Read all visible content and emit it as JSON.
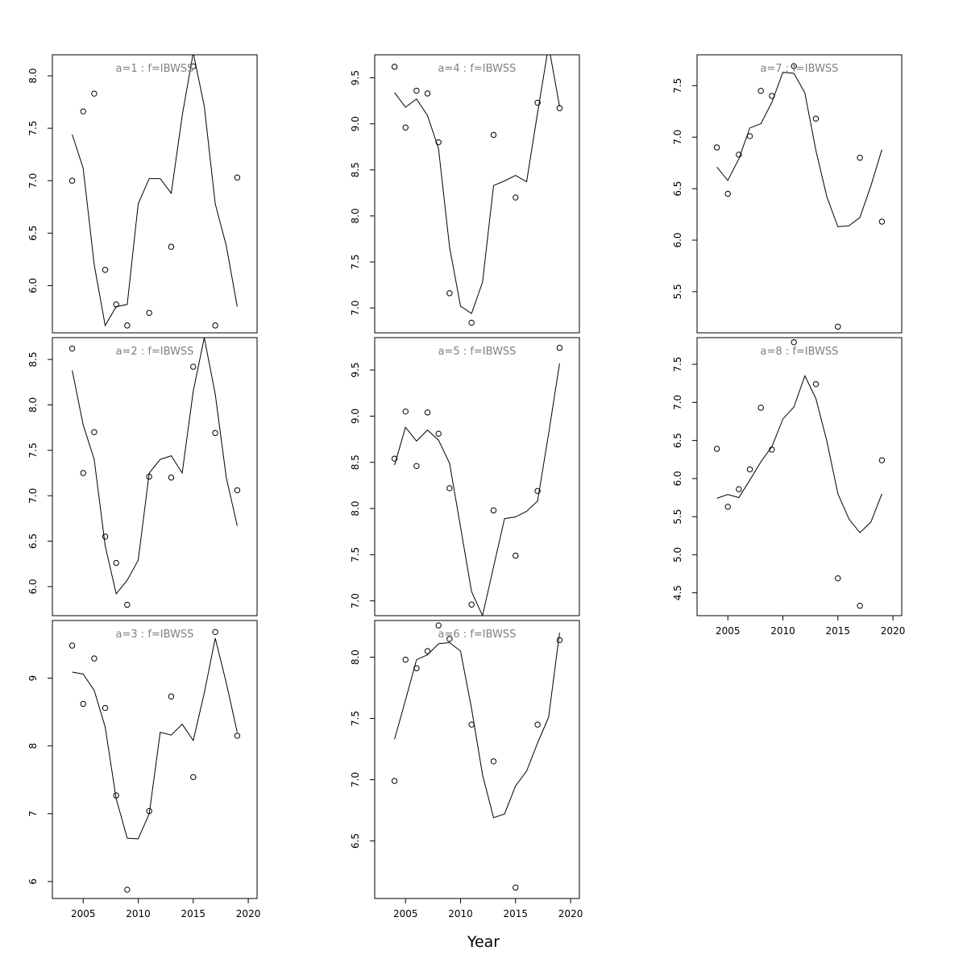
{
  "figure": {
    "xlabel": "Year",
    "xticks": [
      2005,
      2010,
      2015,
      2020
    ]
  },
  "chart_data": [
    {
      "type": "scatter",
      "title": "a=1  :  f=IBWSS",
      "panel_row": 1,
      "panel_col": 1,
      "xlim": [
        2002.2,
        2020.8
      ],
      "ylim": [
        5.55,
        8.2
      ],
      "yticks": [
        "6.0",
        "6.5",
        "7.0",
        "7.5",
        "8.0"
      ],
      "x_axis_labeled": false,
      "observed": {
        "x": [
          2004,
          2005,
          2006,
          2007,
          2008,
          2009,
          2011,
          2013,
          2015,
          2017,
          2019
        ],
        "y": [
          7.0,
          7.66,
          7.83,
          6.15,
          5.82,
          5.62,
          5.74,
          6.37,
          8.09,
          5.62,
          7.03
        ]
      },
      "fitted": {
        "x": [
          2004,
          2005,
          2006,
          2007,
          2008,
          2009,
          2010,
          2011,
          2012,
          2013,
          2014,
          2015,
          2016,
          2017,
          2018,
          2019
        ],
        "y": [
          7.44,
          7.12,
          6.2,
          5.62,
          5.8,
          5.82,
          6.78,
          7.02,
          7.02,
          6.88,
          7.62,
          8.22,
          7.71,
          6.78,
          6.38,
          5.8
        ]
      }
    },
    {
      "type": "scatter",
      "title": "a=2  :  f=IBWSS",
      "panel_row": 2,
      "panel_col": 1,
      "xlim": [
        2002.2,
        2020.8
      ],
      "ylim": [
        5.68,
        8.74
      ],
      "yticks": [
        "6.0",
        "6.5",
        "7.0",
        "7.5",
        "8.0",
        "8.5"
      ],
      "x_axis_labeled": false,
      "observed": {
        "x": [
          2004,
          2005,
          2006,
          2007,
          2008,
          2009,
          2011,
          2013,
          2015,
          2017,
          2019
        ],
        "y": [
          8.62,
          7.25,
          7.7,
          6.55,
          6.26,
          5.8,
          7.21,
          7.2,
          8.42,
          7.69,
          7.06
        ]
      },
      "fitted": {
        "x": [
          2004,
          2005,
          2006,
          2007,
          2008,
          2009,
          2010,
          2011,
          2012,
          2013,
          2014,
          2015,
          2016,
          2017,
          2018,
          2019
        ],
        "y": [
          8.38,
          7.78,
          7.4,
          6.45,
          5.92,
          6.07,
          6.29,
          7.25,
          7.4,
          7.44,
          7.25,
          8.15,
          8.74,
          8.12,
          7.2,
          6.67
        ]
      }
    },
    {
      "type": "scatter",
      "title": "a=3  :  f=IBWSS",
      "panel_row": 3,
      "panel_col": 1,
      "xlim": [
        2002.2,
        2020.8
      ],
      "ylim": [
        5.75,
        9.85
      ],
      "yticks": [
        "6",
        "7",
        "8",
        "9"
      ],
      "x_axis_labeled": true,
      "observed": {
        "x": [
          2004,
          2005,
          2006,
          2007,
          2008,
          2009,
          2011,
          2013,
          2015,
          2017,
          2019
        ],
        "y": [
          9.48,
          8.62,
          9.29,
          8.56,
          7.27,
          5.88,
          7.04,
          8.73,
          7.54,
          9.68,
          8.15
        ]
      },
      "fitted": {
        "x": [
          2004,
          2005,
          2006,
          2007,
          2008,
          2009,
          2010,
          2011,
          2012,
          2013,
          2014,
          2015,
          2016,
          2017,
          2018,
          2019
        ],
        "y": [
          9.09,
          9.06,
          8.82,
          8.28,
          7.22,
          6.64,
          6.63,
          7.0,
          8.2,
          8.16,
          8.32,
          8.08,
          8.78,
          9.59,
          8.93,
          8.2
        ]
      }
    },
    {
      "type": "scatter",
      "title": "a=4  :  f=IBWSS",
      "panel_row": 1,
      "panel_col": 2,
      "xlim": [
        2002.2,
        2020.8
      ],
      "ylim": [
        6.73,
        9.75
      ],
      "yticks": [
        "7.0",
        "7.5",
        "8.0",
        "8.5",
        "9.0",
        "9.5"
      ],
      "x_axis_labeled": false,
      "observed": {
        "x": [
          2004,
          2005,
          2006,
          2007,
          2008,
          2009,
          2011,
          2013,
          2015,
          2017,
          2019
        ],
        "y": [
          9.62,
          8.96,
          9.36,
          9.33,
          8.8,
          7.16,
          6.84,
          8.88,
          8.2,
          9.23,
          9.17
        ]
      },
      "fitted": {
        "x": [
          2004,
          2005,
          2006,
          2007,
          2008,
          2009,
          2010,
          2011,
          2012,
          2013,
          2014,
          2015,
          2016,
          2017,
          2018,
          2019
        ],
        "y": [
          9.34,
          9.18,
          9.27,
          9.09,
          8.73,
          7.66,
          7.02,
          6.94,
          7.28,
          8.33,
          8.38,
          8.44,
          8.37,
          9.12,
          9.85,
          9.19
        ]
      }
    },
    {
      "type": "scatter",
      "title": "a=5  :  f=IBWSS",
      "panel_row": 2,
      "panel_col": 2,
      "xlim": [
        2002.2,
        2020.8
      ],
      "ylim": [
        6.84,
        9.85
      ],
      "yticks": [
        "7.0",
        "7.5",
        "8.0",
        "8.5",
        "9.0",
        "9.5"
      ],
      "x_axis_labeled": false,
      "observed": {
        "x": [
          2004,
          2005,
          2006,
          2007,
          2008,
          2009,
          2011,
          2013,
          2015,
          2017,
          2019
        ],
        "y": [
          8.54,
          9.05,
          8.46,
          9.04,
          8.81,
          8.22,
          6.96,
          7.98,
          7.49,
          8.19,
          9.74
        ]
      },
      "fitted": {
        "x": [
          2004,
          2005,
          2006,
          2007,
          2008,
          2009,
          2010,
          2011,
          2012,
          2013,
          2014,
          2015,
          2016,
          2017,
          2018,
          2019
        ],
        "y": [
          8.47,
          8.88,
          8.73,
          8.85,
          8.74,
          8.49,
          7.8,
          7.1,
          6.84,
          7.37,
          7.89,
          7.91,
          7.97,
          8.08,
          8.81,
          9.57
        ]
      }
    },
    {
      "type": "scatter",
      "title": "a=6  :  f=IBWSS",
      "panel_row": 3,
      "panel_col": 2,
      "xlim": [
        2002.2,
        2020.8
      ],
      "ylim": [
        6.03,
        8.3
      ],
      "yticks": [
        "6.5",
        "7.0",
        "7.5",
        "8.0"
      ],
      "x_axis_labeled": true,
      "observed": {
        "x": [
          2004,
          2005,
          2006,
          2007,
          2008,
          2009,
          2011,
          2013,
          2015,
          2017,
          2019
        ],
        "y": [
          6.99,
          7.98,
          7.91,
          8.05,
          8.26,
          8.15,
          7.45,
          7.15,
          6.12,
          7.45,
          8.14
        ]
      },
      "fitted": {
        "x": [
          2004,
          2005,
          2006,
          2007,
          2008,
          2009,
          2010,
          2011,
          2012,
          2013,
          2014,
          2015,
          2016,
          2017,
          2018,
          2019
        ],
        "y": [
          7.33,
          7.65,
          7.98,
          8.02,
          8.11,
          8.12,
          8.05,
          7.58,
          7.04,
          6.69,
          6.72,
          6.95,
          7.07,
          7.3,
          7.51,
          8.2
        ]
      }
    },
    {
      "type": "scatter",
      "title": "a=7  :  f=IBWSS",
      "panel_row": 1,
      "panel_col": 3,
      "xlim": [
        2002.2,
        2020.8
      ],
      "ylim": [
        5.1,
        7.8
      ],
      "yticks": [
        "5.5",
        "6.0",
        "6.5",
        "7.0",
        "7.5"
      ],
      "x_axis_labeled": false,
      "observed": {
        "x": [
          2004,
          2005,
          2006,
          2007,
          2008,
          2009,
          2011,
          2013,
          2015,
          2017,
          2019
        ],
        "y": [
          6.9,
          6.45,
          6.83,
          7.01,
          7.45,
          7.4,
          7.69,
          7.18,
          5.16,
          6.8,
          6.18
        ]
      },
      "fitted": {
        "x": [
          2004,
          2005,
          2006,
          2007,
          2008,
          2009,
          2010,
          2011,
          2012,
          2013,
          2014,
          2015,
          2016,
          2017,
          2018,
          2019
        ],
        "y": [
          6.71,
          6.58,
          6.79,
          7.09,
          7.13,
          7.34,
          7.63,
          7.62,
          7.43,
          6.87,
          6.42,
          6.13,
          6.14,
          6.22,
          6.53,
          6.88
        ]
      }
    },
    {
      "type": "scatter",
      "title": "a=8  :  f=IBWSS",
      "panel_row": 2,
      "panel_col": 3,
      "xlim": [
        2002.2,
        2020.8
      ],
      "ylim": [
        4.2,
        7.85
      ],
      "yticks": [
        "4.5",
        "5.0",
        "5.5",
        "6.0",
        "6.5",
        "7.0",
        "7.5"
      ],
      "x_axis_labeled": true,
      "observed": {
        "x": [
          2004,
          2005,
          2006,
          2007,
          2008,
          2009,
          2011,
          2013,
          2015,
          2017,
          2019
        ],
        "y": [
          6.39,
          5.63,
          5.86,
          6.12,
          6.93,
          6.38,
          7.79,
          7.24,
          4.69,
          4.33,
          6.24
        ]
      },
      "fitted": {
        "x": [
          2004,
          2005,
          2006,
          2007,
          2008,
          2009,
          2010,
          2011,
          2012,
          2013,
          2014,
          2015,
          2016,
          2017,
          2018,
          2019
        ],
        "y": [
          5.74,
          5.79,
          5.75,
          5.98,
          6.22,
          6.42,
          6.78,
          6.94,
          7.35,
          7.05,
          6.49,
          5.8,
          5.47,
          5.29,
          5.43,
          5.8
        ]
      }
    }
  ]
}
